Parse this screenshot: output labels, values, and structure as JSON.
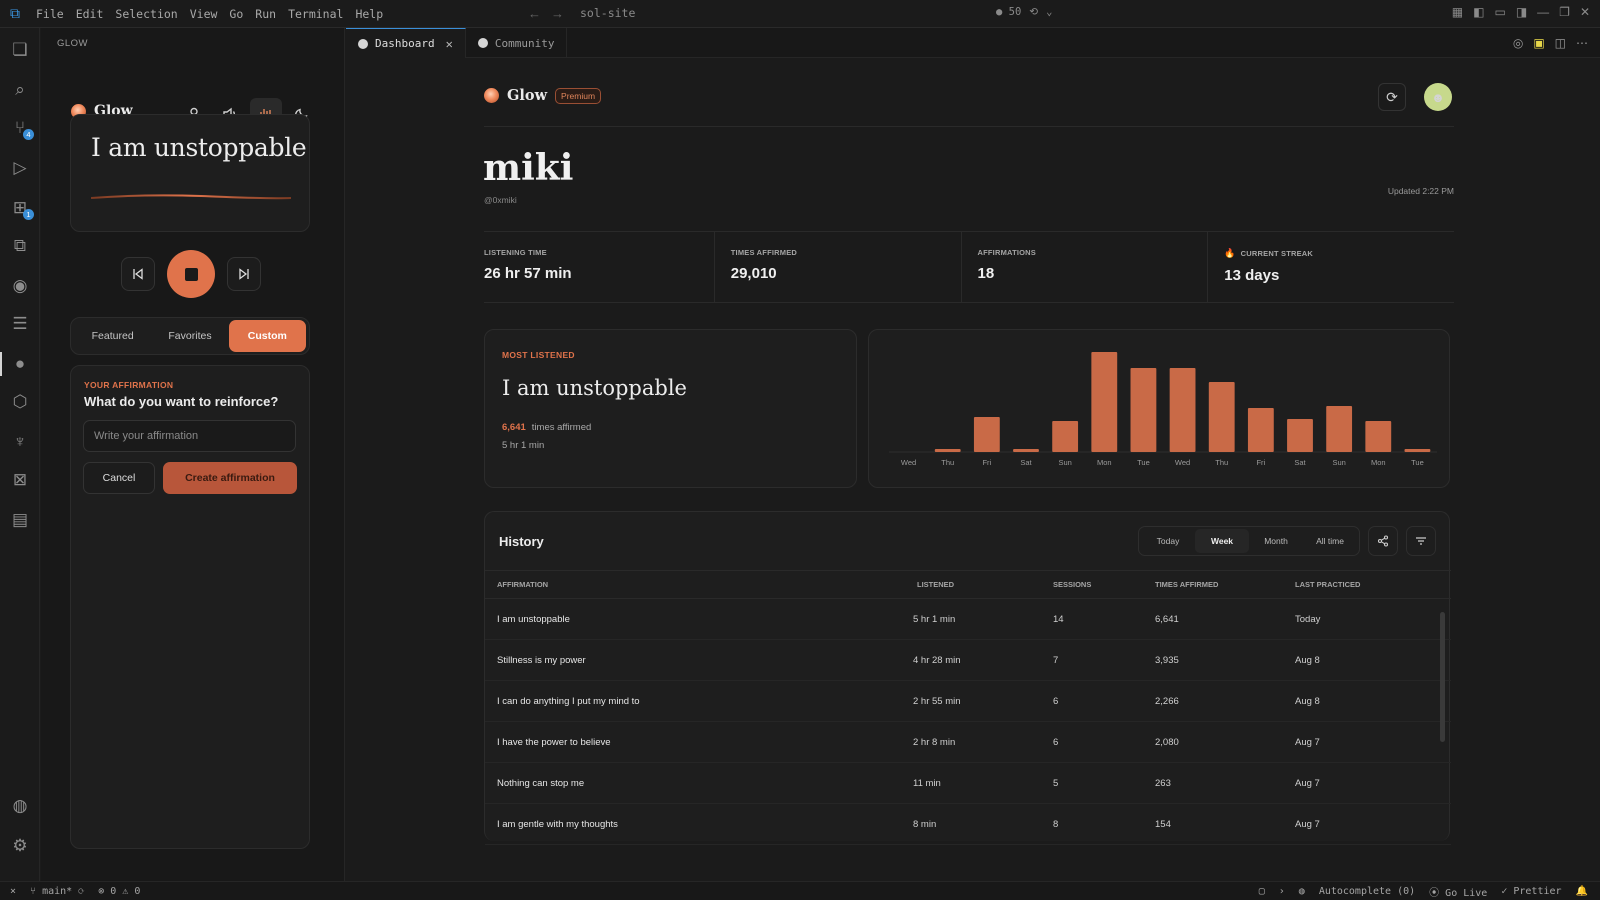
{
  "menu": [
    "File",
    "Edit",
    "Selection",
    "View",
    "Go",
    "Run",
    "Terminal",
    "Help"
  ],
  "command_center": {
    "text": "sol-site",
    "count": "● 50"
  },
  "sidebar": {
    "title": "GLOW",
    "brand": "Glow",
    "current_affirmation": "I am unstoppable",
    "segments": [
      "Featured",
      "Favorites",
      "Custom"
    ],
    "active_segment": "Custom",
    "form": {
      "kicker": "YOUR AFFIRMATION",
      "question": "What do you want to reinforce?",
      "placeholder": "Write your affirmation",
      "cancel": "Cancel",
      "create": "Create affirmation"
    }
  },
  "tabs": [
    {
      "label": "Dashboard",
      "active": true
    },
    {
      "label": "Community",
      "active": false
    }
  ],
  "dashboard": {
    "brand": "Glow",
    "badge": "Premium",
    "name": "miki",
    "handle": "@0xmiki",
    "updated": "Updated 2:22 PM",
    "stats": [
      {
        "label": "LISTENING TIME",
        "value": "26 hr 57 min"
      },
      {
        "label": "TIMES AFFIRMED",
        "value": "29,010"
      },
      {
        "label": "AFFIRMATIONS",
        "value": "18"
      },
      {
        "label": "CURRENT STREAK",
        "value": "13 days"
      }
    ],
    "most_listened": {
      "kicker": "MOST LISTENED",
      "title": "I am unstoppable",
      "count": "6,641",
      "count_label": "times affirmed",
      "duration": "5 hr 1 min"
    }
  },
  "chart_data": {
    "type": "bar",
    "categories": [
      "Wed",
      "Thu",
      "Fri",
      "Sat",
      "Sun",
      "Mon",
      "Tue",
      "Wed",
      "Thu",
      "Fri",
      "Sat",
      "Sun",
      "Mon",
      "Tue"
    ],
    "values": [
      0,
      3,
      35,
      3,
      31,
      100,
      84,
      84,
      70,
      44,
      33,
      46,
      31,
      3
    ],
    "ylim": [
      0,
      100
    ],
    "color": "#c96a47"
  },
  "history": {
    "title": "History",
    "ranges": [
      "Today",
      "Week",
      "Month",
      "All time"
    ],
    "active_range": "Week",
    "columns": [
      "AFFIRMATION",
      "LISTENED",
      "SESSIONS",
      "TIMES AFFIRMED",
      "LAST PRACTICED"
    ],
    "rows": [
      [
        "I am unstoppable",
        "5 hr 1 min",
        "14",
        "6,641",
        "Today"
      ],
      [
        "Stillness is my power",
        "4 hr 28 min",
        "7",
        "3,935",
        "Aug 8"
      ],
      [
        "I can do anything I put my mind to",
        "2 hr 55 min",
        "6",
        "2,266",
        "Aug 8"
      ],
      [
        "I have the power to believe",
        "2 hr 8 min",
        "6",
        "2,080",
        "Aug 7"
      ],
      [
        "Nothing can stop me",
        "11 min",
        "5",
        "263",
        "Aug 7"
      ],
      [
        "I am gentle with my thoughts",
        "8 min",
        "8",
        "154",
        "Aug 7"
      ]
    ]
  },
  "statusbar": {
    "branch": "main*",
    "problems": "⊗ 0 ⚠ 0",
    "autocomplete": "Autocomplete (0)",
    "golive": "Go Live",
    "prettier": "✓ Prettier"
  }
}
